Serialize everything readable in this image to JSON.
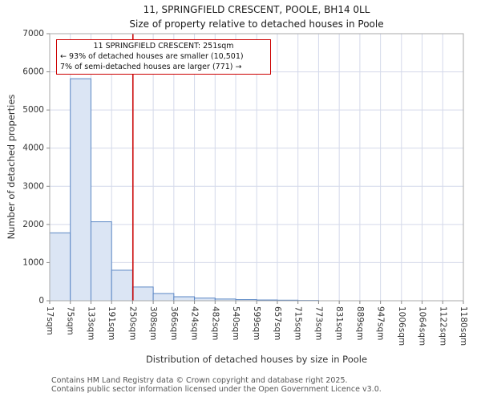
{
  "page": {
    "footer_line1": "Contains HM Land Registry data © Crown copyright and database right 2025.",
    "footer_line2": "Contains public sector information licensed under the Open Government Licence v3.0."
  },
  "chart_data": {
    "type": "bar",
    "title": "11, SPRINGFIELD CRESCENT, POOLE, BH14 0LL",
    "subtitle": "Size of property relative to detached houses in Poole",
    "xlabel": "Distribution of detached houses by size in Poole",
    "ylabel": "Number of detached properties",
    "categories": [
      "17sqm",
      "75sqm",
      "133sqm",
      "191sqm",
      "250sqm",
      "308sqm",
      "366sqm",
      "424sqm",
      "482sqm",
      "540sqm",
      "599sqm",
      "657sqm",
      "715sqm",
      "773sqm",
      "831sqm",
      "889sqm",
      "947sqm",
      "1006sqm",
      "1064sqm",
      "1122sqm",
      "1180sqm"
    ],
    "values": [
      1780,
      5820,
      2070,
      800,
      360,
      190,
      105,
      70,
      45,
      30,
      20,
      15,
      8,
      0,
      0,
      0,
      0,
      0,
      0,
      0
    ],
    "ylim": [
      0,
      7000
    ],
    "yticks": [
      0,
      1000,
      2000,
      3000,
      4000,
      5000,
      6000,
      7000
    ],
    "grid": true,
    "legend": "none",
    "marker": {
      "value_sqm": 251,
      "color": "#cc0000"
    },
    "annotation": {
      "line1": "11 SPRINGFIELD CRESCENT: 251sqm",
      "line2": "← 93% of detached houses are smaller (10,501)",
      "line3": "7% of semi-detached houses are larger (771) →"
    },
    "colors": {
      "bar_fill": "#dbe5f4",
      "bar_stroke": "#5b87c5",
      "grid": "#d4d9ea",
      "spine": "#aaaaaa",
      "tick": "#333333"
    }
  }
}
